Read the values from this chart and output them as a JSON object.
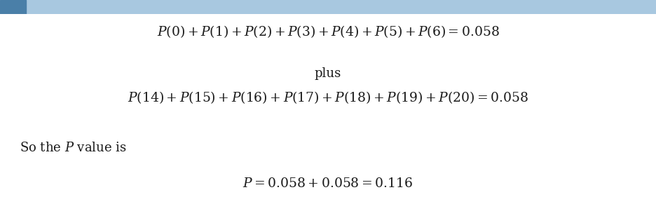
{
  "background_color": "#ffffff",
  "top_bar_color": "#a8c8e0",
  "top_bar_accent": "#4a7fa8",
  "line1": "$P(0) + P(1) + P(2) + P(3) + P(4) + P(5) + P(6) = 0.058$",
  "line2": "plus",
  "line3": "$P(14) + P(15) + P(16) + P(17) + P(18) + P(19) + P(20) = 0.058$",
  "line4_left": "So the $P$ value is",
  "line5": "$P = 0.058 + 0.058 = 0.116$",
  "fontsize_main": 13.5,
  "fontsize_plus": 13,
  "fontsize_label": 13,
  "text_color": "#1a1a1a"
}
